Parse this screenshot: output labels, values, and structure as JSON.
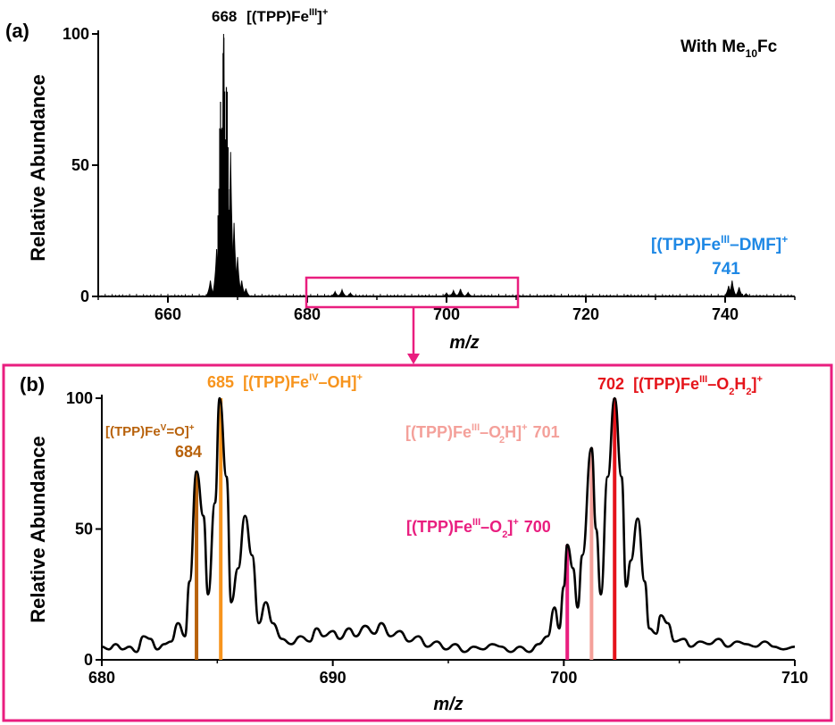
{
  "chart_data": [
    {
      "panel": "(a)",
      "type": "line",
      "note_text": "With Me",
      "note_sub": "10",
      "note_tail": "Fc",
      "xlabel_italic": "m/z",
      "ylabel": "Relative Abundance",
      "xlim": [
        650,
        750
      ],
      "ylim": [
        0,
        100
      ],
      "xticks": [
        660,
        680,
        700,
        720,
        740
      ],
      "yticks": [
        0,
        50,
        100
      ],
      "peaks": [
        {
          "x": 666.1,
          "y": 6
        },
        {
          "x": 667.0,
          "y": 18
        },
        {
          "x": 667.5,
          "y": 45
        },
        {
          "x": 668.0,
          "y": 100
        },
        {
          "x": 668.5,
          "y": 62
        },
        {
          "x": 669.0,
          "y": 55
        },
        {
          "x": 669.5,
          "y": 28
        },
        {
          "x": 670.0,
          "y": 15
        },
        {
          "x": 670.6,
          "y": 6
        },
        {
          "x": 671.2,
          "y": 3
        },
        {
          "x": 684.0,
          "y": 1.8
        },
        {
          "x": 685.0,
          "y": 2.5
        },
        {
          "x": 686.2,
          "y": 1.3
        },
        {
          "x": 700.0,
          "y": 1.3
        },
        {
          "x": 701.0,
          "y": 2.2
        },
        {
          "x": 702.0,
          "y": 2.8
        },
        {
          "x": 703.1,
          "y": 1.5
        },
        {
          "x": 715.0,
          "y": 0.5
        },
        {
          "x": 726.0,
          "y": 0.5
        },
        {
          "x": 740.5,
          "y": 4
        },
        {
          "x": 741.0,
          "y": 6
        },
        {
          "x": 742.0,
          "y": 3.5
        },
        {
          "x": 743.0,
          "y": 1
        }
      ],
      "label_668_num": "668",
      "label_668_text": "[(TPP)Fe",
      "label_668_sup": "III",
      "label_668_tail": "]",
      "label_668_charge": "+",
      "label_741_text": "[(TPP)Fe",
      "label_741_sup": "III",
      "label_741_tail": "–DMF]",
      "label_741_charge": "+",
      "label_741_num": "741",
      "zoom_box": [
        680,
        710
      ],
      "colors": {
        "trace": "#000000",
        "blue": "#1e88e5",
        "box": "#e91e7f"
      }
    },
    {
      "panel": "(b)",
      "type": "line",
      "xlabel_italic": "m/z",
      "ylabel": "Relative Abundance",
      "xlim": [
        680,
        710
      ],
      "ylim": [
        0,
        100
      ],
      "xticks": [
        680,
        690,
        700,
        710
      ],
      "yticks": [
        0,
        50,
        100
      ],
      "trace": [
        [
          680.0,
          5
        ],
        [
          680.3,
          4
        ],
        [
          680.6,
          6
        ],
        [
          680.9,
          4
        ],
        [
          681.2,
          5
        ],
        [
          681.5,
          3
        ],
        [
          681.8,
          9
        ],
        [
          682.1,
          8
        ],
        [
          682.4,
          4
        ],
        [
          682.7,
          6
        ],
        [
          683.0,
          7
        ],
        [
          683.3,
          14
        ],
        [
          683.6,
          9
        ],
        [
          683.8,
          30
        ],
        [
          684.1,
          72
        ],
        [
          684.4,
          55
        ],
        [
          684.6,
          25
        ],
        [
          684.9,
          60
        ],
        [
          685.1,
          100
        ],
        [
          685.4,
          70
        ],
        [
          685.6,
          22
        ],
        [
          685.9,
          35
        ],
        [
          686.2,
          55
        ],
        [
          686.5,
          40
        ],
        [
          686.8,
          14
        ],
        [
          687.1,
          22
        ],
        [
          687.4,
          14
        ],
        [
          687.8,
          8
        ],
        [
          688.2,
          6
        ],
        [
          688.6,
          9
        ],
        [
          689.0,
          7
        ],
        [
          689.3,
          12
        ],
        [
          689.6,
          9
        ],
        [
          690.0,
          11
        ],
        [
          690.3,
          8
        ],
        [
          690.7,
          12
        ],
        [
          691.0,
          9
        ],
        [
          691.4,
          13
        ],
        [
          691.8,
          10
        ],
        [
          692.1,
          14
        ],
        [
          692.5,
          9
        ],
        [
          692.9,
          11
        ],
        [
          693.3,
          7
        ],
        [
          693.7,
          9
        ],
        [
          694.1,
          5
        ],
        [
          694.5,
          7
        ],
        [
          694.9,
          4
        ],
        [
          695.3,
          6
        ],
        [
          695.7,
          3
        ],
        [
          696.1,
          5
        ],
        [
          696.5,
          4
        ],
        [
          696.9,
          6
        ],
        [
          697.3,
          5
        ],
        [
          697.7,
          3
        ],
        [
          698.1,
          5
        ],
        [
          698.5,
          3
        ],
        [
          698.9,
          6
        ],
        [
          699.3,
          9
        ],
        [
          699.6,
          20
        ],
        [
          699.8,
          12
        ],
        [
          700.0,
          28
        ],
        [
          700.15,
          44
        ],
        [
          700.4,
          35
        ],
        [
          700.6,
          20
        ],
        [
          700.8,
          40
        ],
        [
          701.2,
          81
        ],
        [
          701.4,
          50
        ],
        [
          701.6,
          25
        ],
        [
          701.9,
          70
        ],
        [
          702.2,
          100
        ],
        [
          702.5,
          70
        ],
        [
          702.7,
          28
        ],
        [
          702.9,
          38
        ],
        [
          703.2,
          54
        ],
        [
          703.5,
          30
        ],
        [
          703.7,
          12
        ],
        [
          704.0,
          10
        ],
        [
          704.2,
          17
        ],
        [
          704.5,
          14
        ],
        [
          704.8,
          7
        ],
        [
          705.2,
          8
        ],
        [
          705.5,
          5
        ],
        [
          705.9,
          7
        ],
        [
          706.3,
          6
        ],
        [
          706.7,
          8
        ],
        [
          707.1,
          5
        ],
        [
          707.5,
          7
        ],
        [
          707.9,
          6
        ],
        [
          708.3,
          5
        ],
        [
          708.7,
          7
        ],
        [
          709.1,
          5
        ],
        [
          709.5,
          4
        ],
        [
          710.0,
          5
        ]
      ],
      "markers": [
        {
          "x": 684.1,
          "y": 72,
          "color": "#b8620c"
        },
        {
          "x": 685.15,
          "y": 100,
          "color": "#f7941d"
        },
        {
          "x": 700.15,
          "y": 44,
          "color": "#e91e7f"
        },
        {
          "x": 701.2,
          "y": 81,
          "color": "#f4a09a"
        },
        {
          "x": 702.2,
          "y": 100,
          "color": "#e5141b"
        }
      ],
      "lab684_text": "[(TPP)Fe",
      "lab684_sup": "V",
      "lab684_tail": "=O]",
      "lab684_charge": "+",
      "lab684_num": "684",
      "lab685_num": "685",
      "lab685_text": "[(TPP)Fe",
      "lab685_sup": "IV",
      "lab685_tail": "–OH]",
      "lab685_charge": "+",
      "lab700_text": "[(TPP)Fe",
      "lab700_sup": "III",
      "lab700_mid": "–O",
      "lab700_sub": "2",
      "lab700_tail": "]",
      "lab700_charge": "+",
      "lab700_num": "700",
      "lab701_text": "[(TPP)Fe",
      "lab701_sup": "III",
      "lab701_mid": "–O",
      "lab701_dot": "•",
      "lab701_sub": "2",
      "lab701_tail": "H]",
      "lab701_charge": "+",
      "lab701_num": "701",
      "lab702_num": "702",
      "lab702_text": "[(TPP)Fe",
      "lab702_sup": "III",
      "lab702_mid": "–O",
      "lab702_sub1": "2",
      "lab702_h": "H",
      "lab702_sub2": "2",
      "lab702_tail": "]",
      "lab702_charge": "+"
    }
  ]
}
